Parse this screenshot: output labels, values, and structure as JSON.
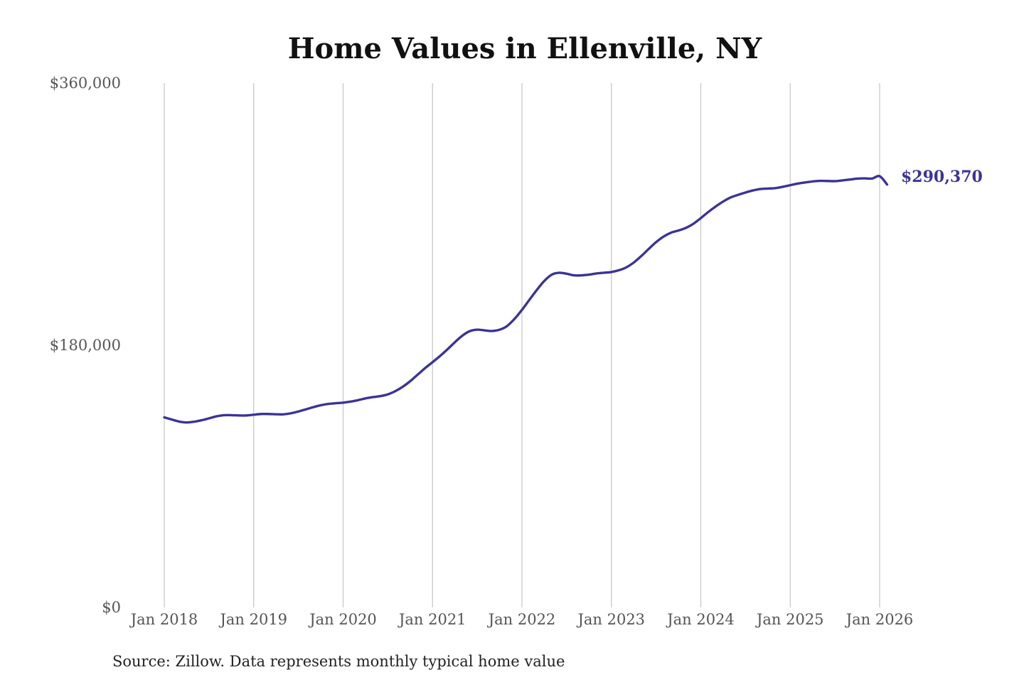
{
  "chart_data": {
    "type": "line",
    "title": "Home Values in Ellenville, NY",
    "xlabel": "",
    "ylabel": "",
    "ylim": [
      0,
      360000
    ],
    "xlim": [
      "2018-01",
      "2026-01"
    ],
    "y_ticks": [
      "$0",
      "$180,000",
      "$360,000"
    ],
    "y_tick_values": [
      0,
      180000,
      360000
    ],
    "x_ticks": [
      "Jan 2018",
      "Jan 2019",
      "Jan 2020",
      "Jan 2021",
      "Jan 2022",
      "Jan 2023",
      "Jan 2024",
      "Jan 2025",
      "Jan 2026"
    ],
    "grid": "vertical",
    "legend": "none",
    "end_label": "$290,370",
    "line_color": "#3b3397",
    "series": [
      {
        "x": [
          "2018-01",
          "2018-02",
          "2018-03",
          "2018-04",
          "2018-05",
          "2018-06",
          "2018-07",
          "2018-08",
          "2018-09",
          "2018-10",
          "2018-11",
          "2018-12",
          "2019-01",
          "2019-02",
          "2019-03",
          "2019-04",
          "2019-05",
          "2019-06",
          "2019-07",
          "2019-08",
          "2019-09",
          "2019-10",
          "2019-11",
          "2019-12",
          "2020-01",
          "2020-02",
          "2020-03",
          "2020-04",
          "2020-05",
          "2020-06",
          "2020-07",
          "2020-08",
          "2020-09",
          "2020-10",
          "2020-11",
          "2020-12",
          "2021-01",
          "2021-02",
          "2021-03",
          "2021-04",
          "2021-05",
          "2021-06",
          "2021-07",
          "2021-08",
          "2021-09",
          "2021-10",
          "2021-11",
          "2021-12",
          "2022-01",
          "2022-02",
          "2022-03",
          "2022-04",
          "2022-05",
          "2022-06",
          "2022-07",
          "2022-08",
          "2022-09",
          "2022-10",
          "2022-11",
          "2022-12",
          "2023-01",
          "2023-02",
          "2023-03",
          "2023-04",
          "2023-05",
          "2023-06",
          "2023-07",
          "2023-08",
          "2023-09",
          "2023-10",
          "2023-11",
          "2023-12",
          "2024-01",
          "2024-02",
          "2024-03",
          "2024-04",
          "2024-05",
          "2024-06",
          "2024-07",
          "2024-08",
          "2024-09",
          "2024-10",
          "2024-11",
          "2024-12",
          "2025-01",
          "2025-02",
          "2025-03",
          "2025-04",
          "2025-05",
          "2025-06",
          "2025-07",
          "2025-08",
          "2025-09",
          "2025-10",
          "2025-11",
          "2025-12",
          "2026-01",
          "2026-02"
        ],
        "values": [
          130500,
          129000,
          127600,
          127000,
          127500,
          128500,
          129800,
          131200,
          132000,
          132000,
          131800,
          131800,
          132300,
          132800,
          132800,
          132600,
          132600,
          133300,
          134500,
          136000,
          137500,
          138800,
          139700,
          140200,
          140600,
          141300,
          142300,
          143500,
          144400,
          145100,
          146300,
          148500,
          151500,
          155300,
          159800,
          164300,
          168400,
          172600,
          177200,
          182100,
          186600,
          189700,
          190700,
          190200,
          189800,
          190700,
          193200,
          198100,
          204300,
          211200,
          218000,
          224200,
          228500,
          229800,
          229100,
          228000,
          228000,
          228500,
          229300,
          229800,
          230300,
          231500,
          233500,
          236800,
          241200,
          246100,
          250800,
          254600,
          257300,
          258800,
          260600,
          263400,
          267300,
          271500,
          275300,
          278700,
          281500,
          283300,
          284900,
          286300,
          287300,
          287600,
          287900,
          288800,
          289900,
          291000,
          291800,
          292500,
          292900,
          292800,
          292700,
          293200,
          293800,
          294400,
          294600,
          294500,
          296100,
          290370
        ]
      }
    ]
  },
  "source_note": "Source: Zillow. Data represents monthly typical home value"
}
